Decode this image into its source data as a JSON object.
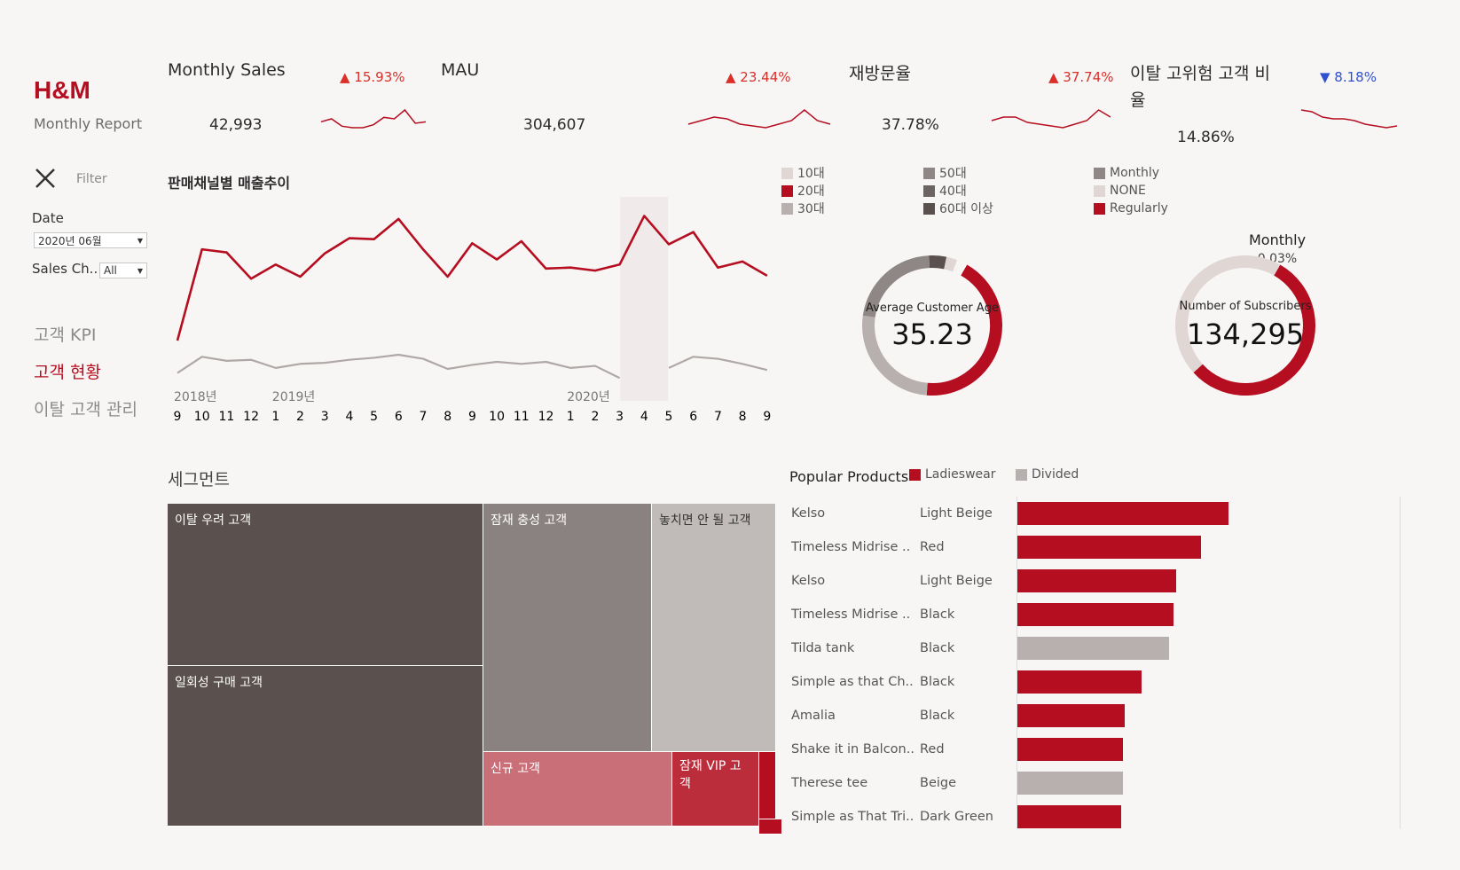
{
  "brand": {
    "title": "H&M",
    "subtitle": "Monthly Report"
  },
  "kpis": [
    {
      "title": "Monthly Sales",
      "value": "42,993",
      "delta": "▲ 15.93%",
      "direction": "up",
      "spark": [
        6,
        8,
        3,
        2,
        2,
        4,
        9,
        8,
        14,
        5,
        6
      ]
    },
    {
      "title": "MAU",
      "value": "304,607",
      "delta": "▲ 23.44%",
      "direction": "up",
      "spark": [
        5,
        7,
        9,
        8,
        5,
        4,
        3,
        5,
        7,
        13,
        7,
        5
      ]
    },
    {
      "title": "재방문율",
      "value": "37.78%",
      "delta": "▲ 37.74%",
      "direction": "up",
      "spark": [
        6,
        8,
        8,
        5,
        4,
        3,
        2,
        4,
        6,
        12,
        8
      ]
    },
    {
      "title": "이탈 고위험 고객 비율",
      "value": "14.86%",
      "delta": "▼ 8.18%",
      "direction": "down",
      "spark": [
        12,
        11,
        8,
        7,
        7,
        6,
        4,
        3,
        2,
        3
      ]
    }
  ],
  "filter": {
    "label": "Filter",
    "date_label": "Date",
    "date_value": "2020년 06월",
    "channel_label": "Sales Ch..",
    "channel_value": "All"
  },
  "nav": [
    "고객 KPI",
    "고객 현황",
    "이탈 고객 관리"
  ],
  "trend": {
    "title": "판매채널별 매출추이",
    "years": [
      "2018년",
      "2019년",
      "2020년"
    ],
    "months": [
      "9",
      "10",
      "11",
      "12",
      "1",
      "2",
      "3",
      "4",
      "5",
      "6",
      "7",
      "8",
      "9",
      "10",
      "11",
      "12",
      "1",
      "2",
      "3",
      "4",
      "5",
      "6",
      "7",
      "8",
      "9"
    ],
    "series": [
      {
        "color": "#b50e20",
        "values": [
          42,
          132,
          129,
          103,
          117,
          105,
          128,
          143,
          142,
          162,
          132,
          105,
          138,
          122,
          140,
          113,
          114,
          111,
          117,
          165,
          137,
          149,
          114,
          120,
          106
        ]
      },
      {
        "color": "#b0a8a6",
        "values": [
          10,
          26,
          22,
          23,
          15,
          19,
          20,
          23,
          25,
          28,
          24,
          14,
          18,
          21,
          19,
          21,
          15,
          17,
          5,
          null,
          15,
          26,
          24,
          19,
          13
        ]
      }
    ],
    "highlight_month_index": 19
  },
  "age_legend": [
    {
      "label": "10대",
      "color": "#e0d6d4"
    },
    {
      "label": "20대",
      "color": "#b50e20"
    },
    {
      "label": "30대",
      "color": "#b8b0ae"
    },
    {
      "label": "50대",
      "color": "#8e8785"
    },
    {
      "label": "40대",
      "color": "#6c6462"
    },
    {
      "label": "60대 이상",
      "color": "#5a504e"
    }
  ],
  "sub_legend": [
    {
      "label": "Monthly",
      "color": "#8e8785"
    },
    {
      "label": "NONE",
      "color": "#e0d6d4"
    },
    {
      "label": "Regularly",
      "color": "#b50e20"
    }
  ],
  "age_donut": {
    "label": "Average Customer Age",
    "value": "35.23",
    "segments": [
      {
        "share": 0.43,
        "color": "#b50e20"
      },
      {
        "share": 0.26,
        "color": "#b8b0ae"
      },
      {
        "share": 0.22,
        "color": "#8e8785"
      },
      {
        "share": 0.04,
        "color": "#5a504e"
      },
      {
        "share": 0.025,
        "color": "#e0d6d4"
      }
    ]
  },
  "sub_donut": {
    "title": "Monthly",
    "share_label": "0.03%",
    "label": "Number of Subscribers",
    "value": "134,295",
    "segments": [
      {
        "share": 0.55,
        "color": "#b50e20"
      },
      {
        "share": 0.45,
        "color": "#e0d6d4"
      }
    ]
  },
  "segments": {
    "title": "세그먼트",
    "cells": [
      {
        "label": "이탈 우려 고객",
        "color": "#5a504e"
      },
      {
        "label": "일회성 구매 고객",
        "color": "#5a504e"
      },
      {
        "label": "잠재 충성 고객",
        "color": "#8a8280"
      },
      {
        "label": "놓치면 안 될 고객",
        "color": "#c0bab8"
      },
      {
        "label": "신규 고객",
        "color": "#c96f78"
      },
      {
        "label": "잠재 VIP 고객",
        "color": "#bc2d3c"
      }
    ]
  },
  "products": {
    "title": "Popular Products",
    "legend": [
      {
        "label": "Ladieswear",
        "color": "#b50e20"
      },
      {
        "label": "Divided",
        "color": "#b8b0ae"
      }
    ],
    "rows": [
      {
        "name": "Kelso",
        "color_name": "Light Beige",
        "value": 100,
        "group": "Ladieswear"
      },
      {
        "name": "Timeless Midrise ..",
        "color_name": "Red",
        "value": 87,
        "group": "Ladieswear"
      },
      {
        "name": "Kelso",
        "color_name": "Light Beige",
        "value": 75,
        "group": "Ladieswear"
      },
      {
        "name": "Timeless Midrise ..",
        "color_name": "Black",
        "value": 74,
        "group": "Ladieswear"
      },
      {
        "name": "Tilda tank",
        "color_name": "Black",
        "value": 72,
        "group": "Divided"
      },
      {
        "name": "Simple as that Ch..",
        "color_name": "Black",
        "value": 59,
        "group": "Ladieswear"
      },
      {
        "name": "Amalia",
        "color_name": "Black",
        "value": 51,
        "group": "Ladieswear"
      },
      {
        "name": "Shake it in Balcon..",
        "color_name": "Red",
        "value": 50,
        "group": "Ladieswear"
      },
      {
        "name": "Therese tee",
        "color_name": "Beige",
        "value": 50,
        "group": "Divided"
      },
      {
        "name": "Simple as That Tri..",
        "color_name": "Dark Green",
        "value": 49,
        "group": "Ladieswear"
      }
    ]
  }
}
